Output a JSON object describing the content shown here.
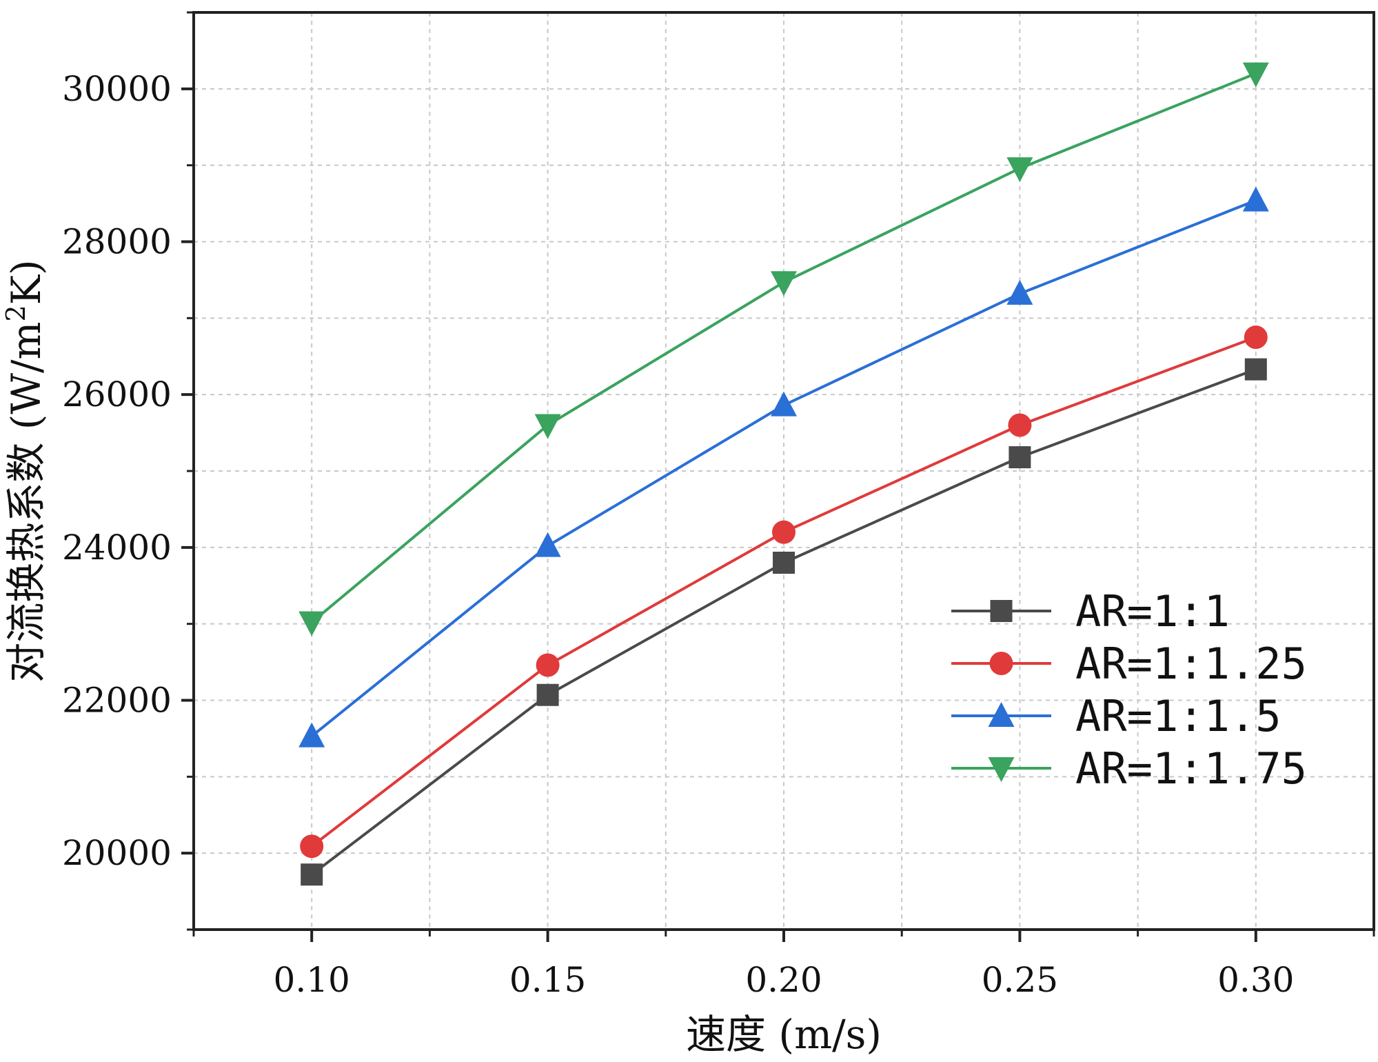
{
  "chart_data": {
    "type": "line",
    "title": "",
    "xlabel": "速度 (m/s)",
    "ylabel_main": "对流换热系数 (W/m",
    "ylabel_sup": "2",
    "ylabel_tail": "K)",
    "x": [
      0.1,
      0.15,
      0.2,
      0.25,
      0.3
    ],
    "x_tick_labels": [
      "0.10",
      "0.15",
      "0.20",
      "0.25",
      "0.30"
    ],
    "xlim": [
      0.075,
      0.325
    ],
    "y_tick_values": [
      20000,
      22000,
      24000,
      26000,
      28000,
      30000
    ],
    "y_tick_labels": [
      "20000",
      "22000",
      "24000",
      "26000",
      "28000",
      "30000"
    ],
    "ylim": [
      19000,
      31000
    ],
    "grid": true,
    "legend_position": "right",
    "series": [
      {
        "name": "AR=1:1",
        "color": "#4a4a4a",
        "marker": "square",
        "values": [
          19720,
          22070,
          23800,
          25180,
          26330
        ]
      },
      {
        "name": "AR=1:1.25",
        "color": "#e03a3a",
        "marker": "circle",
        "values": [
          20090,
          22460,
          24200,
          25600,
          26750
        ]
      },
      {
        "name": "AR=1:1.5",
        "color": "#2a6fd6",
        "marker": "triangle-up",
        "values": [
          21530,
          24020,
          25860,
          27320,
          28540
        ]
      },
      {
        "name": "AR=1:1.75",
        "color": "#3aa35e",
        "marker": "triangle-down",
        "values": [
          23020,
          25600,
          27470,
          28960,
          30200
        ]
      }
    ]
  }
}
